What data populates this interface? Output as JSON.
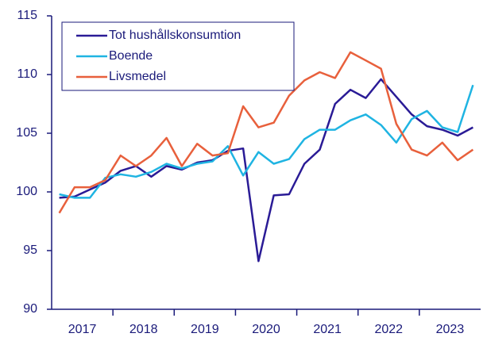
{
  "chart_data": {
    "type": "line",
    "categories": [
      null,
      "2017",
      null,
      null,
      null,
      "2018",
      null,
      null,
      null,
      "2019",
      null,
      null,
      null,
      "2020",
      null,
      null,
      null,
      "2021",
      null,
      null,
      null,
      "2022",
      null,
      null,
      null,
      "2023",
      null,
      null
    ],
    "series": [
      {
        "name": "Tot hushållskonsumtion",
        "color": "#2a1b96",
        "values": [
          99.5,
          99.6,
          100.2,
          100.8,
          101.8,
          102.2,
          101.3,
          102.2,
          101.9,
          102.5,
          102.7,
          103.5,
          103.7,
          94.1,
          99.7,
          99.8,
          102.4,
          103.6,
          107.5,
          108.7,
          108.0,
          109.6,
          108.1,
          106.6,
          105.6,
          105.3,
          104.8,
          105.5
        ]
      },
      {
        "name": "Boende",
        "color": "#1fb4e2",
        "values": [
          99.8,
          99.5,
          99.5,
          101.2,
          101.5,
          101.3,
          101.7,
          102.4,
          102.0,
          102.4,
          102.6,
          103.9,
          101.4,
          103.4,
          102.4,
          102.8,
          104.5,
          105.3,
          105.3,
          106.1,
          106.6,
          105.7,
          104.2,
          106.2,
          106.9,
          105.5,
          105.1,
          109.1
        ]
      },
      {
        "name": "Livsmedel",
        "color": "#e8603c",
        "values": [
          98.2,
          100.4,
          100.4,
          101.0,
          103.1,
          102.2,
          103.1,
          104.6,
          102.2,
          104.1,
          103.1,
          103.3,
          107.3,
          105.5,
          105.9,
          108.2,
          109.5,
          110.2,
          109.7,
          111.9,
          111.2,
          110.5,
          105.8,
          103.6,
          103.1,
          104.2,
          102.7,
          103.6
        ]
      }
    ],
    "ylim": [
      90,
      115
    ],
    "yticks": [
      90,
      95,
      100,
      105,
      110,
      115
    ],
    "legend": "upper left"
  }
}
